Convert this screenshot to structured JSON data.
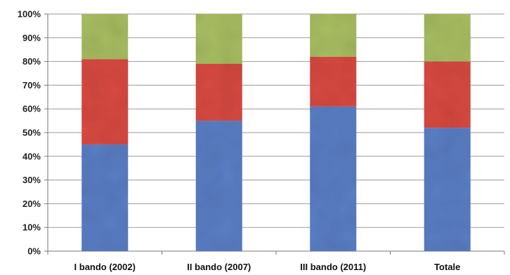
{
  "chart_data": {
    "type": "bar",
    "stacked": true,
    "percent_stacked": true,
    "categories": [
      "I bando (2002)",
      "II bando (2007)",
      "III bando (2011)",
      "Totale"
    ],
    "series": [
      {
        "values": [
          45,
          55,
          61,
          52
        ],
        "color": "#5b7fc6"
      },
      {
        "values": [
          36,
          24,
          21,
          28
        ],
        "color": "#d94a42"
      },
      {
        "values": [
          19,
          21,
          18,
          20
        ],
        "color": "#a9bf62"
      }
    ],
    "ylim": [
      0,
      100
    ],
    "yticks": [
      "0%",
      "10%",
      "20%",
      "30%",
      "40%",
      "50%",
      "60%",
      "70%",
      "80%",
      "90%",
      "100%"
    ],
    "grid": true,
    "legend": "none"
  }
}
